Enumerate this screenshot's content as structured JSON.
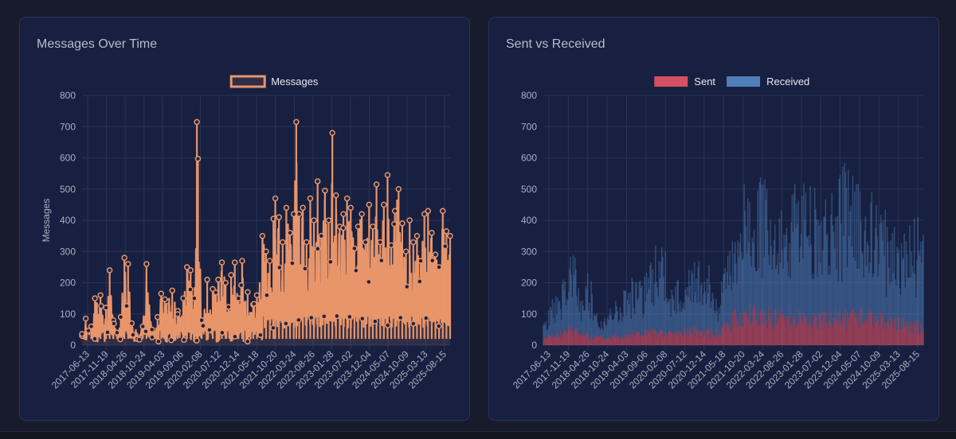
{
  "colors": {
    "page_bg": "#181b2c",
    "card_bg": "#172040",
    "grid": "#2b3456",
    "tick_text": "#aab0c2",
    "legend_text": "#e6e8ef",
    "messages": "#e8956a",
    "messages_fill": "rgba(232,149,106,0.12)",
    "sent": "#d64f63",
    "received": "#4f7fb8"
  },
  "chart_data": [
    {
      "type": "line",
      "title": "Messages Over Time",
      "xlabel": "",
      "ylabel": "Messages",
      "ylim": [
        0,
        800
      ],
      "yticks": [
        0,
        100,
        200,
        300,
        400,
        500,
        600,
        700,
        800
      ],
      "x_tick_labels": [
        "2017-06-13",
        "2017-11-19",
        "2018-04-26",
        "2018-10-24",
        "2019-04-03",
        "2019-09-06",
        "2020-02-08",
        "2020-07-12",
        "2020-12-14",
        "2021-05-18",
        "2021-10-20",
        "2022-03-24",
        "2022-08-26",
        "2023-01-28",
        "2023-07-02",
        "2023-12-04",
        "2024-05-07",
        "2024-10-09",
        "2025-03-13",
        "2025-08-15"
      ],
      "legend": {
        "position": "top",
        "entries": [
          "Messages"
        ]
      },
      "grid": true,
      "series": [
        {
          "name": "Messages",
          "peaks": [
            {
              "x": 0.0,
              "y": 30
            },
            {
              "x": 0.01,
              "y": 85
            },
            {
              "x": 0.025,
              "y": 60
            },
            {
              "x": 0.035,
              "y": 150
            },
            {
              "x": 0.05,
              "y": 160
            },
            {
              "x": 0.065,
              "y": 120
            },
            {
              "x": 0.075,
              "y": 240
            },
            {
              "x": 0.085,
              "y": 80
            },
            {
              "x": 0.095,
              "y": 40
            },
            {
              "x": 0.105,
              "y": 90
            },
            {
              "x": 0.115,
              "y": 280
            },
            {
              "x": 0.125,
              "y": 260
            },
            {
              "x": 0.135,
              "y": 70
            },
            {
              "x": 0.15,
              "y": 20
            },
            {
              "x": 0.165,
              "y": 60
            },
            {
              "x": 0.175,
              "y": 260
            },
            {
              "x": 0.19,
              "y": 50
            },
            {
              "x": 0.205,
              "y": 90
            },
            {
              "x": 0.215,
              "y": 165
            },
            {
              "x": 0.23,
              "y": 140
            },
            {
              "x": 0.245,
              "y": 175
            },
            {
              "x": 0.26,
              "y": 110
            },
            {
              "x": 0.275,
              "y": 150
            },
            {
              "x": 0.285,
              "y": 250
            },
            {
              "x": 0.295,
              "y": 240
            },
            {
              "x": 0.305,
              "y": 150
            },
            {
              "x": 0.312,
              "y": 715
            },
            {
              "x": 0.315,
              "y": 597
            },
            {
              "x": 0.325,
              "y": 80
            },
            {
              "x": 0.34,
              "y": 210
            },
            {
              "x": 0.355,
              "y": 180
            },
            {
              "x": 0.37,
              "y": 210
            },
            {
              "x": 0.38,
              "y": 265
            },
            {
              "x": 0.39,
              "y": 200
            },
            {
              "x": 0.405,
              "y": 225
            },
            {
              "x": 0.415,
              "y": 265
            },
            {
              "x": 0.425,
              "y": 150
            },
            {
              "x": 0.435,
              "y": 270
            },
            {
              "x": 0.45,
              "y": 170
            },
            {
              "x": 0.465,
              "y": 130
            },
            {
              "x": 0.475,
              "y": 160
            },
            {
              "x": 0.49,
              "y": 350
            },
            {
              "x": 0.5,
              "y": 300
            },
            {
              "x": 0.51,
              "y": 270
            },
            {
              "x": 0.52,
              "y": 405
            },
            {
              "x": 0.525,
              "y": 470
            },
            {
              "x": 0.535,
              "y": 410
            },
            {
              "x": 0.545,
              "y": 330
            },
            {
              "x": 0.555,
              "y": 440
            },
            {
              "x": 0.565,
              "y": 360
            },
            {
              "x": 0.575,
              "y": 420
            },
            {
              "x": 0.582,
              "y": 715
            },
            {
              "x": 0.59,
              "y": 420
            },
            {
              "x": 0.6,
              "y": 440
            },
            {
              "x": 0.61,
              "y": 330
            },
            {
              "x": 0.62,
              "y": 470
            },
            {
              "x": 0.63,
              "y": 400
            },
            {
              "x": 0.64,
              "y": 525
            },
            {
              "x": 0.65,
              "y": 350
            },
            {
              "x": 0.66,
              "y": 495
            },
            {
              "x": 0.67,
              "y": 400
            },
            {
              "x": 0.68,
              "y": 680
            },
            {
              "x": 0.69,
              "y": 480
            },
            {
              "x": 0.7,
              "y": 380
            },
            {
              "x": 0.71,
              "y": 420
            },
            {
              "x": 0.72,
              "y": 470
            },
            {
              "x": 0.73,
              "y": 440
            },
            {
              "x": 0.74,
              "y": 310
            },
            {
              "x": 0.75,
              "y": 380
            },
            {
              "x": 0.76,
              "y": 420
            },
            {
              "x": 0.77,
              "y": 330
            },
            {
              "x": 0.78,
              "y": 450
            },
            {
              "x": 0.79,
              "y": 380
            },
            {
              "x": 0.8,
              "y": 515
            },
            {
              "x": 0.81,
              "y": 330
            },
            {
              "x": 0.82,
              "y": 450
            },
            {
              "x": 0.83,
              "y": 545
            },
            {
              "x": 0.84,
              "y": 320
            },
            {
              "x": 0.85,
              "y": 430
            },
            {
              "x": 0.86,
              "y": 500
            },
            {
              "x": 0.87,
              "y": 390
            },
            {
              "x": 0.88,
              "y": 300
            },
            {
              "x": 0.89,
              "y": 400
            },
            {
              "x": 0.9,
              "y": 330
            },
            {
              "x": 0.91,
              "y": 350
            },
            {
              "x": 0.92,
              "y": 270
            },
            {
              "x": 0.93,
              "y": 420
            },
            {
              "x": 0.94,
              "y": 430
            },
            {
              "x": 0.95,
              "y": 360
            },
            {
              "x": 0.96,
              "y": 290
            },
            {
              "x": 0.97,
              "y": 250
            },
            {
              "x": 0.98,
              "y": 430
            },
            {
              "x": 0.99,
              "y": 365
            },
            {
              "x": 1.0,
              "y": 350
            }
          ]
        }
      ]
    },
    {
      "type": "area",
      "title": "Sent vs Received",
      "xlabel": "",
      "ylabel": "",
      "stacked": true,
      "ylim": [
        0,
        800
      ],
      "yticks": [
        0,
        100,
        200,
        300,
        400,
        500,
        600,
        700,
        800
      ],
      "x_tick_labels": [
        "2017-06-13",
        "2017-11-19",
        "2018-04-26",
        "2018-10-24",
        "2019-04-03",
        "2019-09-06",
        "2020-02-08",
        "2020-07-12",
        "2020-12-14",
        "2021-05-18",
        "2021-10-20",
        "2022-03-24",
        "2022-08-26",
        "2023-01-28",
        "2023-07-02",
        "2023-12-04",
        "2024-05-07",
        "2024-10-09",
        "2025-03-13",
        "2025-08-15"
      ],
      "legend": {
        "position": "top",
        "entries": [
          "Sent",
          "Received"
        ]
      },
      "grid": true,
      "series": [
        {
          "name": "Sent",
          "profile": [
            {
              "x": 0.0,
              "y": 20
            },
            {
              "x": 0.05,
              "y": 40
            },
            {
              "x": 0.08,
              "y": 55
            },
            {
              "x": 0.12,
              "y": 30
            },
            {
              "x": 0.16,
              "y": 25
            },
            {
              "x": 0.22,
              "y": 40
            },
            {
              "x": 0.28,
              "y": 45
            },
            {
              "x": 0.32,
              "y": 40
            },
            {
              "x": 0.4,
              "y": 50
            },
            {
              "x": 0.46,
              "y": 40
            },
            {
              "x": 0.5,
              "y": 90
            },
            {
              "x": 0.55,
              "y": 110
            },
            {
              "x": 0.6,
              "y": 95
            },
            {
              "x": 0.65,
              "y": 100
            },
            {
              "x": 0.7,
              "y": 90
            },
            {
              "x": 0.75,
              "y": 85
            },
            {
              "x": 0.8,
              "y": 95
            },
            {
              "x": 0.85,
              "y": 100
            },
            {
              "x": 0.9,
              "y": 80
            },
            {
              "x": 0.95,
              "y": 70
            },
            {
              "x": 1.0,
              "y": 65
            }
          ]
        },
        {
          "name": "Received",
          "profile": [
            {
              "x": 0.0,
              "y": 50
            },
            {
              "x": 0.04,
              "y": 140
            },
            {
              "x": 0.08,
              "y": 240
            },
            {
              "x": 0.1,
              "y": 100
            },
            {
              "x": 0.12,
              "y": 200
            },
            {
              "x": 0.15,
              "y": 40
            },
            {
              "x": 0.2,
              "y": 150
            },
            {
              "x": 0.25,
              "y": 180
            },
            {
              "x": 0.28,
              "y": 200
            },
            {
              "x": 0.31,
              "y": 310
            },
            {
              "x": 0.34,
              "y": 130
            },
            {
              "x": 0.38,
              "y": 210
            },
            {
              "x": 0.42,
              "y": 230
            },
            {
              "x": 0.46,
              "y": 120
            },
            {
              "x": 0.5,
              "y": 300
            },
            {
              "x": 0.53,
              "y": 380
            },
            {
              "x": 0.58,
              "y": 470
            },
            {
              "x": 0.62,
              "y": 320
            },
            {
              "x": 0.66,
              "y": 400
            },
            {
              "x": 0.7,
              "y": 420
            },
            {
              "x": 0.74,
              "y": 360
            },
            {
              "x": 0.78,
              "y": 430
            },
            {
              "x": 0.82,
              "y": 490
            },
            {
              "x": 0.86,
              "y": 350
            },
            {
              "x": 0.9,
              "y": 330
            },
            {
              "x": 0.94,
              "y": 300
            },
            {
              "x": 0.97,
              "y": 360
            },
            {
              "x": 1.0,
              "y": 290
            }
          ]
        }
      ]
    }
  ]
}
